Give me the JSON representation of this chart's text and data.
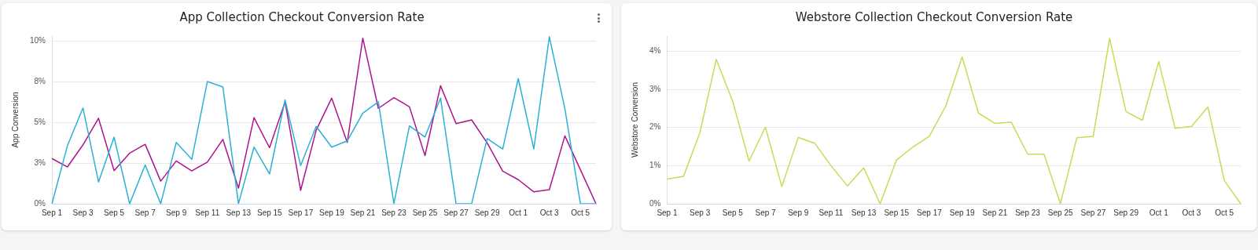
{
  "chart_data": [
    {
      "type": "line",
      "title": "App Collection Checkout Conversion Rate",
      "ylabel": "App Conversion",
      "categories": [
        "Sep 1",
        null,
        "Sep 3",
        null,
        "Sep 5",
        null,
        "Sep 7",
        null,
        "Sep 9",
        null,
        "Sep 11",
        null,
        "Sep 13",
        null,
        "Sep 15",
        null,
        "Sep 17",
        null,
        "Sep 19",
        null,
        "Sep 21",
        null,
        "Sep 23",
        null,
        "Sep 25",
        null,
        "Sep 27",
        null,
        "Sep 29",
        null,
        "Oct 1",
        null,
        "Oct 3",
        null,
        "Oct 5",
        null
      ],
      "series": [
        {
          "color": "#29b1d6",
          "values": [
            0,
            3.57,
            5.88,
            1.34,
            4.09,
            0,
            2.38,
            0,
            3.77,
            2.73,
            7.51,
            7.17,
            0,
            3.48,
            1.83,
            6.38,
            2.35,
            4.75,
            3.48,
            3.86,
            5.57,
            6.26,
            0,
            4.78,
            4.1,
            6.49,
            0,
            0,
            4.0,
            3.36,
            7.69,
            3.36,
            10.26,
            5.83,
            0,
            0
          ]
        },
        {
          "color": "#b0128f",
          "values": [
            2.78,
            2.26,
            3.62,
            5.25,
            2.03,
            3.11,
            3.65,
            1.39,
            2.63,
            2.02,
            2.56,
            3.95,
            0.96,
            5.29,
            3.44,
            6.26,
            0.82,
            4.52,
            6.49,
            3.77,
            10.17,
            5.86,
            6.52,
            5.95,
            2.96,
            7.25,
            4.92,
            5.15,
            3.74,
            2.0,
            1.48,
            0.73,
            0.87,
            4.17,
            2.09,
            0
          ]
        }
      ],
      "ylim": [
        0,
        10.3
      ],
      "yticks": [
        {
          "value": 0,
          "label": "0%"
        },
        {
          "value": 2.5,
          "label": "3%"
        },
        {
          "value": 5,
          "label": "5%"
        },
        {
          "value": 7.5,
          "label": "8%"
        },
        {
          "value": 10,
          "label": "10%"
        }
      ],
      "grid": "y",
      "marker": "none",
      "line_style": "solid"
    },
    {
      "type": "line",
      "title": "Webstore Collection Checkout Conversion Rate",
      "ylabel": "Webstore Conversion",
      "categories": [
        "Sep 1",
        null,
        "Sep 3",
        null,
        "Sep 5",
        null,
        "Sep 7",
        null,
        "Sep 9",
        null,
        "Sep 11",
        null,
        "Sep 13",
        null,
        "Sep 15",
        null,
        "Sep 17",
        null,
        "Sep 19",
        null,
        "Sep 21",
        null,
        "Sep 23",
        null,
        "Sep 25",
        null,
        "Sep 27",
        null,
        "Sep 29",
        null,
        "Oct 1",
        null,
        "Oct 3",
        null,
        "Oct 5",
        null
      ],
      "series": [
        {
          "color": "#c3dd55",
          "values": [
            0.65,
            0.72,
            1.86,
            3.79,
            2.69,
            1.12,
            2.01,
            0.45,
            1.74,
            1.59,
            1.0,
            0.47,
            0.94,
            0,
            1.15,
            1.49,
            1.77,
            2.56,
            3.85,
            2.38,
            2.11,
            2.14,
            1.3,
            1.3,
            0,
            1.73,
            1.77,
            4.34,
            2.42,
            2.19,
            3.73,
            1.98,
            2.03,
            2.54,
            0.61,
            0
          ]
        }
      ],
      "ylim": [
        0,
        4.4
      ],
      "yticks": [
        {
          "value": 0,
          "label": "0%"
        },
        {
          "value": 1,
          "label": "1%"
        },
        {
          "value": 2,
          "label": "2%"
        },
        {
          "value": 3,
          "label": "3%"
        },
        {
          "value": 4,
          "label": "4%"
        }
      ],
      "grid": "y",
      "marker": "none",
      "line_style": "solid"
    }
  ]
}
